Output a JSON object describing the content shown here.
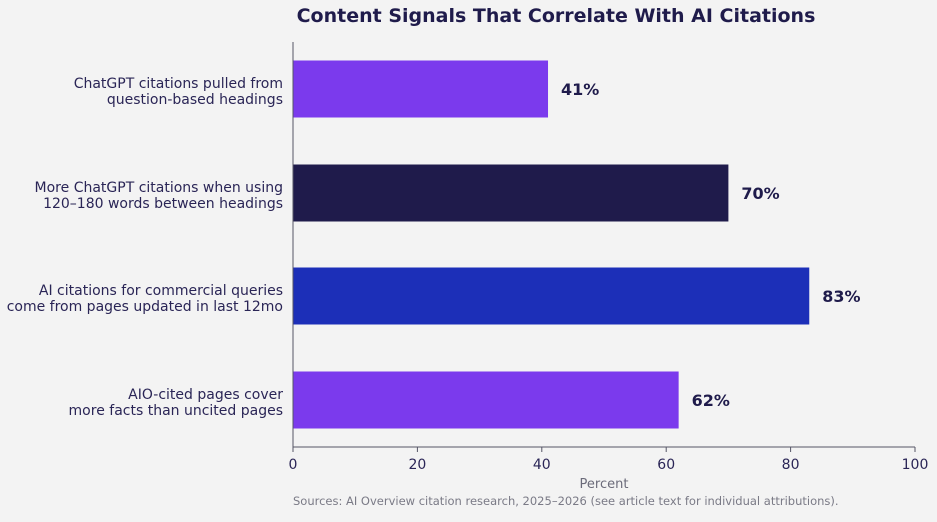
{
  "chart_data": {
    "type": "bar",
    "orientation": "horizontal",
    "title": "Content Signals That Correlate With AI Citations",
    "xlabel": "Percent",
    "ylabel": "",
    "xlim": [
      0,
      100
    ],
    "ticks": [
      0,
      20,
      40,
      60,
      80,
      100
    ],
    "grid": false,
    "categories": [
      [
        "ChatGPT citations pulled from",
        "question-based headings"
      ],
      [
        "More ChatGPT citations when using",
        "120–180 words between headings"
      ],
      [
        "AI citations for commercial queries",
        "come from pages updated in last 12mo"
      ],
      [
        "AIO-cited pages cover",
        "more facts than uncited pages"
      ]
    ],
    "values": [
      41,
      70,
      83,
      62
    ],
    "value_labels": [
      "41%",
      "70%",
      "83%",
      "62%"
    ],
    "colors": [
      "#7b3aed",
      "#1f1b4b",
      "#1c2fb8",
      "#7b3aed"
    ],
    "source": "Sources: AI Overview citation research, 2025–2026 (see article text for individual attributions)."
  }
}
